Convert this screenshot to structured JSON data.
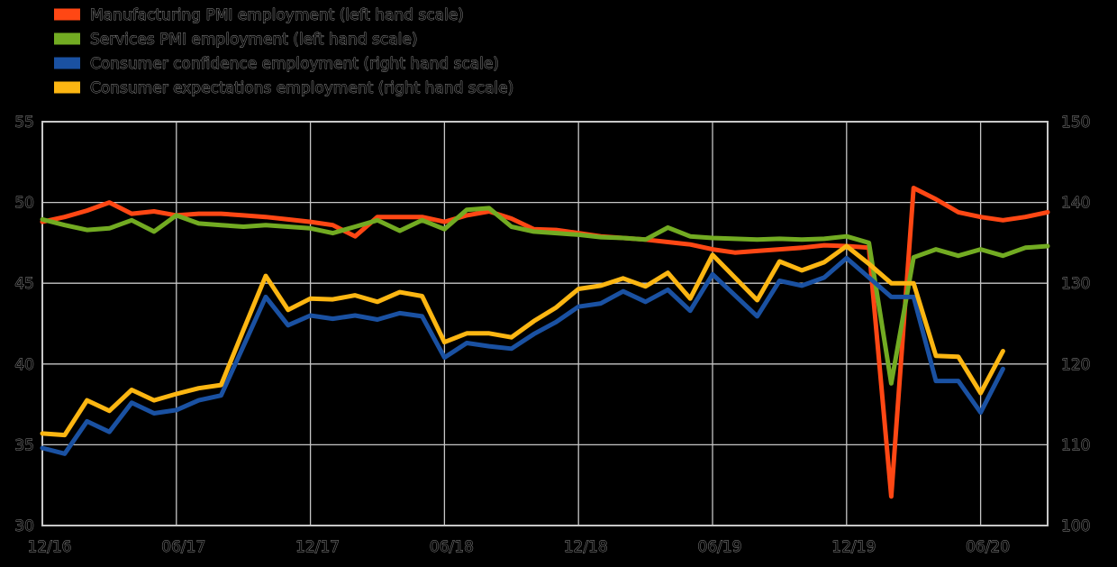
{
  "chart_data": {
    "type": "line",
    "title": "",
    "xlabel": "",
    "ylabel": "",
    "grid": true,
    "legend_position": "top-left",
    "background_color": "#000000",
    "grid_color": "#c6c6c6",
    "axis_border_color": "#c8c8c8",
    "left_axis": {
      "range": [
        30,
        55
      ],
      "ticks": [
        55,
        50,
        45,
        40,
        35,
        30
      ]
    },
    "right_axis": {
      "range": [
        100,
        150
      ],
      "ticks": [
        150,
        140,
        130,
        120,
        110,
        100
      ]
    },
    "x_tick_labels": [
      "12/16",
      "06/17",
      "12/17",
      "06/18",
      "12/18",
      "06/19",
      "12/19",
      "06/20"
    ],
    "x_tick_indices": [
      0,
      6,
      12,
      18,
      24,
      30,
      36,
      42
    ],
    "months": [
      "12/16",
      "01/17",
      "02/17",
      "03/17",
      "04/17",
      "05/17",
      "06/17",
      "07/17",
      "08/17",
      "09/17",
      "10/17",
      "11/17",
      "12/17",
      "01/18",
      "02/18",
      "03/18",
      "04/18",
      "05/18",
      "06/18",
      "07/18",
      "08/18",
      "09/18",
      "10/18",
      "11/18",
      "12/18",
      "01/19",
      "02/19",
      "03/19",
      "04/19",
      "05/19",
      "06/19",
      "07/19",
      "08/19",
      "09/19",
      "10/19",
      "11/19",
      "12/19",
      "01/20",
      "02/20",
      "03/20",
      "04/20",
      "05/20",
      "06/20",
      "07/20",
      "08/20",
      "09/20"
    ],
    "series": [
      {
        "name": "Manufacturing PMI employment",
        "legend_label": "Manufacturing PMI employment (left hand scale)",
        "axis": "left",
        "color": "#FF4714",
        "values": [
          48.8,
          49.1,
          49.5,
          50.0,
          49.3,
          49.45,
          49.2,
          49.3,
          49.3,
          49.2,
          49.1,
          48.95,
          48.8,
          48.6,
          47.9,
          49.1,
          49.1,
          49.1,
          48.8,
          49.2,
          49.45,
          49.0,
          48.35,
          48.3,
          48.1,
          47.9,
          47.8,
          47.7,
          47.55,
          47.4,
          47.1,
          46.9,
          47.0,
          47.1,
          47.2,
          47.35,
          47.3,
          47.2,
          31.8,
          50.9,
          50.2,
          49.4,
          49.1,
          48.9,
          49.1,
          49.4
        ]
      },
      {
        "name": "Services PMI employment",
        "legend_label": "Services PMI employment (left hand scale)",
        "axis": "left",
        "color": "#72AB22",
        "values": [
          48.95,
          48.6,
          48.3,
          48.4,
          48.9,
          48.2,
          49.2,
          48.7,
          48.6,
          48.5,
          48.6,
          48.5,
          48.4,
          48.1,
          48.5,
          48.9,
          48.25,
          48.9,
          48.35,
          49.55,
          49.65,
          48.5,
          48.2,
          48.1,
          48.0,
          47.85,
          47.8,
          47.7,
          48.45,
          47.9,
          47.8,
          47.75,
          47.7,
          47.75,
          47.7,
          47.75,
          47.9,
          47.5,
          38.8,
          46.6,
          47.1,
          46.7,
          47.1,
          46.7,
          47.2,
          47.3
        ]
      },
      {
        "name": "Consumer confidence employment",
        "legend_label": "Consumer confidence employment (right hand scale)",
        "axis": "right",
        "color": "#1A51A2",
        "values": [
          109.6,
          108.9,
          112.9,
          111.6,
          115.2,
          113.9,
          114.3,
          115.5,
          116.1,
          122.2,
          128.3,
          124.8,
          126.0,
          125.6,
          126.0,
          125.5,
          126.3,
          125.9,
          120.8,
          122.6,
          122.2,
          121.9,
          123.7,
          125.2,
          127.1,
          127.5,
          129.0,
          127.7,
          129.2,
          126.6,
          131.1,
          128.5,
          125.9,
          130.3,
          129.7,
          130.7,
          133.1,
          130.7,
          128.3,
          128.3,
          117.9,
          117.9,
          114.0,
          119.4,
          null,
          null
        ]
      },
      {
        "name": "Consumer expectations employment",
        "legend_label": "Consumer expectations employment (right hand scale)",
        "axis": "right",
        "color": "#FCB612",
        "values": [
          111.4,
          111.2,
          115.5,
          114.2,
          116.8,
          115.5,
          116.3,
          117.0,
          117.4,
          124.2,
          130.9,
          126.7,
          128.1,
          128.0,
          128.5,
          127.7,
          128.9,
          128.4,
          122.7,
          123.8,
          123.8,
          123.3,
          125.3,
          127.0,
          129.3,
          129.7,
          130.6,
          129.6,
          131.3,
          128.1,
          133.5,
          130.7,
          127.9,
          132.7,
          131.6,
          132.6,
          134.6,
          132.4,
          130.0,
          130.0,
          121.0,
          120.9,
          116.4,
          121.6,
          null,
          null
        ]
      }
    ]
  }
}
